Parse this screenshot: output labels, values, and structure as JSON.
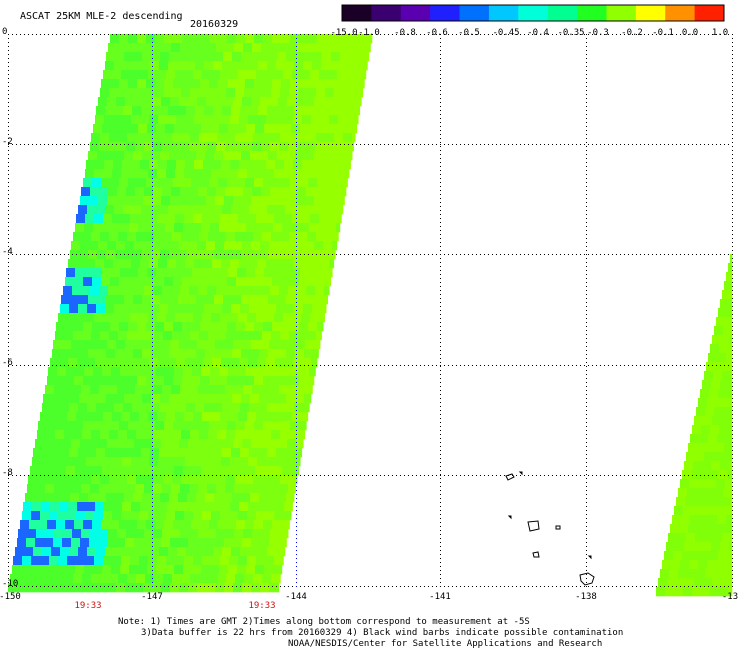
{
  "header": {
    "title": "ASCAT 25KM MLE-2 descending",
    "date": "20160329"
  },
  "colorbar": {
    "labels": [
      "-15.0",
      "-1.0",
      "-0.8",
      "-0.6",
      "-0.5",
      "-0.45",
      "-0.4",
      "-0.35",
      "-0.3",
      "-0.2",
      "-0.1",
      "0.0",
      "1.0"
    ],
    "colors": [
      "#1a0026",
      "#3a0070",
      "#5a00b0",
      "#2020ff",
      "#0070ff",
      "#00c8ff",
      "#00ffd8",
      "#00ff90",
      "#20ff20",
      "#90ff00",
      "#ffff00",
      "#ff9000",
      "#ff2000"
    ]
  },
  "map": {
    "lon_labels": [
      "-150",
      "-147",
      "-144",
      "-141",
      "-138",
      "-13"
    ],
    "lat_labels": [
      "0",
      "-2",
      "-4",
      "-6",
      "-8",
      "-10"
    ],
    "time_labels": [
      "19:33",
      "19:33"
    ]
  },
  "notes": {
    "line1": "Note: 1) Times are GMT 2)Times along bottom correspond to measurement at -5S",
    "line2": "3)Data buffer is 22 hrs from 20160329 4) Black wind barbs indicate possible contamination",
    "line3": "NOAA/NESDIS/Center for Satellite Applications and Research"
  }
}
